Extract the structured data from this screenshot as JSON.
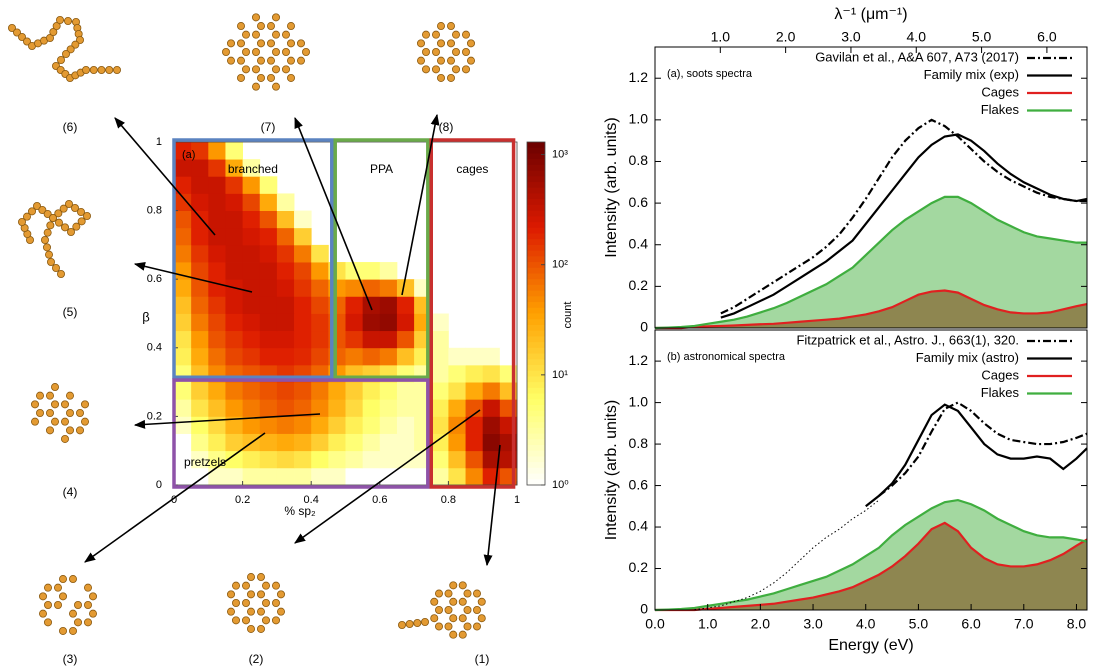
{
  "structures": {
    "labels": [
      "(1)",
      "(2)",
      "(3)",
      "(4)",
      "(5)",
      "(6)",
      "(7)",
      "(8)"
    ]
  },
  "chart_data": [
    {
      "type": "heatmap",
      "panel_label": "(a)",
      "xlabel": "% sp₂",
      "ylabel": "β",
      "colorbar_label": "count",
      "xlim": [
        0,
        1
      ],
      "ylim": [
        0,
        1
      ],
      "xticks": [
        0,
        0.2,
        0.4,
        0.6,
        0.8,
        1
      ],
      "yticks": [
        0,
        0.2,
        0.4,
        0.6,
        0.8,
        1
      ],
      "clim": [
        1,
        1300
      ],
      "log_color": true,
      "cticks": [
        {
          "value": 1,
          "label": "10⁰"
        },
        {
          "value": 10,
          "label": "10¹"
        },
        {
          "value": 100,
          "label": "10²"
        },
        {
          "value": 1000,
          "label": "10³"
        }
      ],
      "colormap": [
        "#ffffff",
        "#ffff66",
        "#ffa000",
        "#dd1a00",
        "#6b0000"
      ],
      "xbins": [
        0,
        0.05,
        0.1,
        0.15,
        0.2,
        0.25,
        0.3,
        0.35,
        0.4,
        0.45,
        0.5,
        0.55,
        0.6,
        0.65,
        0.7,
        0.75,
        0.8,
        0.85,
        0.9,
        0.95,
        1
      ],
      "ybins": [
        0,
        0.05,
        0.1,
        0.15,
        0.2,
        0.25,
        0.3,
        0.35,
        0.4,
        0.45,
        0.5,
        0.55,
        0.6,
        0.65,
        0.7,
        0.75,
        0.8,
        0.85,
        0.9,
        0.95,
        1
      ],
      "z": [
        [
          null,
          1,
          2,
          2,
          3,
          3,
          3,
          3,
          2,
          2,
          1,
          1,
          1,
          1,
          1,
          3,
          10,
          50,
          200,
          100
        ],
        [
          1,
          2,
          4,
          6,
          8,
          10,
          12,
          10,
          6,
          4,
          3,
          2,
          2,
          2,
          2,
          5,
          20,
          100,
          500,
          400
        ],
        [
          1,
          4,
          8,
          15,
          20,
          25,
          30,
          25,
          15,
          8,
          5,
          3,
          2,
          2,
          3,
          8,
          40,
          200,
          800,
          500
        ],
        [
          2,
          6,
          12,
          25,
          40,
          50,
          60,
          50,
          30,
          15,
          8,
          5,
          3,
          2,
          3,
          10,
          50,
          200,
          600,
          300
        ],
        [
          3,
          10,
          20,
          40,
          60,
          80,
          100,
          80,
          50,
          25,
          12,
          6,
          4,
          3,
          3,
          8,
          30,
          100,
          300,
          100
        ],
        [
          5,
          15,
          30,
          60,
          80,
          100,
          120,
          100,
          60,
          30,
          15,
          8,
          5,
          3,
          3,
          5,
          10,
          30,
          60,
          20
        ],
        [
          5,
          20,
          50,
          80,
          100,
          120,
          150,
          120,
          80,
          40,
          20,
          15,
          10,
          5,
          3,
          3,
          5,
          8,
          10,
          5
        ],
        [
          8,
          30,
          70,
          120,
          150,
          200,
          200,
          180,
          120,
          80,
          60,
          80,
          60,
          20,
          8,
          3,
          2,
          2,
          2,
          1
        ],
        [
          10,
          40,
          100,
          150,
          200,
          250,
          250,
          200,
          150,
          100,
          150,
          300,
          300,
          100,
          15,
          3,
          null,
          null,
          null,
          null
        ],
        [
          15,
          60,
          120,
          200,
          250,
          300,
          300,
          200,
          150,
          100,
          250,
          600,
          700,
          250,
          30,
          2,
          null,
          null,
          null,
          null
        ],
        [
          20,
          80,
          150,
          250,
          300,
          300,
          300,
          200,
          120,
          80,
          200,
          500,
          600,
          200,
          20,
          null,
          null,
          null,
          null,
          null
        ],
        [
          30,
          100,
          200,
          250,
          300,
          300,
          250,
          150,
          80,
          40,
          50,
          80,
          60,
          20,
          2,
          null,
          null,
          null,
          null,
          null
        ],
        [
          40,
          120,
          200,
          300,
          300,
          300,
          200,
          120,
          40,
          10,
          5,
          5,
          3,
          null,
          null,
          null,
          null,
          null,
          null,
          null
        ],
        [
          60,
          150,
          250,
          300,
          300,
          250,
          150,
          60,
          10,
          null,
          null,
          null,
          null,
          null,
          null,
          null,
          null,
          null,
          null,
          null
        ],
        [
          80,
          200,
          300,
          300,
          250,
          200,
          80,
          15,
          null,
          null,
          null,
          null,
          null,
          null,
          null,
          null,
          null,
          null,
          null,
          null
        ],
        [
          100,
          200,
          300,
          300,
          200,
          100,
          20,
          2,
          null,
          null,
          null,
          null,
          null,
          null,
          null,
          null,
          null,
          null,
          null,
          null
        ],
        [
          150,
          250,
          300,
          250,
          120,
          30,
          3,
          null,
          null,
          null,
          null,
          null,
          null,
          null,
          null,
          null,
          null,
          null,
          null,
          null
        ],
        [
          200,
          300,
          300,
          150,
          40,
          5,
          null,
          null,
          null,
          null,
          null,
          null,
          null,
          null,
          null,
          null,
          null,
          null,
          null,
          null
        ],
        [
          300,
          300,
          150,
          30,
          3,
          null,
          null,
          null,
          null,
          null,
          null,
          null,
          null,
          null,
          null,
          null,
          null,
          null,
          null,
          null
        ],
        [
          200,
          150,
          40,
          5,
          null,
          null,
          null,
          null,
          null,
          null,
          null,
          null,
          null,
          null,
          null,
          null,
          null,
          null,
          null,
          null
        ]
      ],
      "regions": [
        {
          "name": "branched",
          "color": "#5b83c0",
          "x": [
            0,
            0.46
          ],
          "y": [
            0.32,
            1
          ],
          "label_corner": "top"
        },
        {
          "name": "PPA",
          "color": "#6aaa4a",
          "x": [
            0.47,
            0.74
          ],
          "y": [
            0.32,
            1
          ],
          "label_corner": "top"
        },
        {
          "name": "cages",
          "color": "#c8302f",
          "x": [
            0.75,
            0.99
          ],
          "y": [
            0,
            1
          ],
          "label_corner": "top"
        },
        {
          "name": "pretzels",
          "color": "#8e52a8",
          "x": [
            0,
            0.74
          ],
          "y": [
            0,
            0.3
          ],
          "label_corner": "bottom-left"
        }
      ]
    },
    {
      "type": "line",
      "panel_label": "(a), soots spectra",
      "ylabel": "Intensity (arb. units)",
      "x2label": "λ⁻¹ (μm⁻¹)",
      "x2lim": [
        0,
        6.614
      ],
      "x2ticks": [
        {
          "value": 1,
          "label": "1.0"
        },
        {
          "value": 2,
          "label": "2.0"
        },
        {
          "value": 3,
          "label": "3.0"
        },
        {
          "value": 4,
          "label": "4.0"
        },
        {
          "value": 5,
          "label": "5.0"
        },
        {
          "value": 6,
          "label": "6.0"
        }
      ],
      "xlim": [
        0,
        8.2
      ],
      "ylim": [
        0,
        1.35
      ],
      "yticks": [
        0,
        0.2,
        0.4,
        0.6,
        0.8,
        {
          "value": 1,
          "label": "1.0"
        },
        1.2
      ],
      "legend": "top-right",
      "x": [
        0,
        0.25,
        0.5,
        0.75,
        1,
        1.25,
        1.5,
        1.75,
        2,
        2.25,
        2.5,
        2.75,
        3,
        3.25,
        3.5,
        3.75,
        4,
        4.25,
        4.5,
        4.75,
        5,
        5.25,
        5.5,
        5.75,
        6,
        6.25,
        6.5,
        6.75,
        7,
        7.25,
        7.5,
        7.75,
        8,
        8.2
      ],
      "series": [
        {
          "name": "Gavilan et al., A&A 607, A73 (2017)",
          "color": "#000000",
          "line_style": "dash-dot",
          "values": [
            null,
            null,
            null,
            null,
            null,
            0.07,
            0.1,
            0.14,
            0.18,
            0.22,
            0.26,
            0.3,
            0.34,
            0.39,
            0.45,
            0.53,
            0.62,
            0.72,
            0.82,
            0.9,
            0.96,
            1.0,
            0.97,
            0.92,
            0.86,
            0.8,
            0.75,
            0.71,
            0.68,
            0.65,
            0.63,
            0.62,
            0.61,
            0.61
          ]
        },
        {
          "name": "Family mix (exp)",
          "color": "#000000",
          "line_style": "solid",
          "values": [
            null,
            null,
            null,
            null,
            null,
            0.05,
            0.07,
            0.1,
            0.13,
            0.16,
            0.2,
            0.24,
            0.28,
            0.32,
            0.37,
            0.42,
            0.5,
            0.58,
            0.66,
            0.74,
            0.82,
            0.88,
            0.92,
            0.93,
            0.9,
            0.85,
            0.79,
            0.74,
            0.7,
            0.67,
            0.64,
            0.62,
            0.61,
            0.62
          ]
        },
        {
          "name": "Cages",
          "color": "#e02020",
          "line_style": "solid",
          "fill_color": "#8e8650",
          "values": [
            0,
            0,
            0,
            0.005,
            0.008,
            0.01,
            0.012,
            0.015,
            0.018,
            0.02,
            0.025,
            0.03,
            0.035,
            0.04,
            0.045,
            0.055,
            0.065,
            0.08,
            0.1,
            0.13,
            0.16,
            0.175,
            0.18,
            0.17,
            0.14,
            0.11,
            0.09,
            0.075,
            0.07,
            0.07,
            0.075,
            0.09,
            0.105,
            0.115
          ]
        },
        {
          "name": "Flakes",
          "color": "#3fae3f",
          "line_style": "solid",
          "fill_color": "#a3d8a0",
          "values": [
            0,
            0.002,
            0.005,
            0.01,
            0.02,
            0.03,
            0.04,
            0.055,
            0.075,
            0.095,
            0.12,
            0.15,
            0.18,
            0.21,
            0.25,
            0.29,
            0.35,
            0.41,
            0.47,
            0.52,
            0.56,
            0.6,
            0.63,
            0.63,
            0.6,
            0.56,
            0.52,
            0.49,
            0.46,
            0.44,
            0.43,
            0.42,
            0.41,
            0.41
          ]
        }
      ]
    },
    {
      "type": "line",
      "panel_label": "(b) astronomical spectra",
      "ylabel": "Intensity (arb. units)",
      "xlabel": "Energy (eV)",
      "xlim": [
        0,
        8.2
      ],
      "ylim": [
        0,
        1.35
      ],
      "xticks": [
        {
          "value": 0,
          "label": "0.0"
        },
        {
          "value": 1,
          "label": "1.0"
        },
        {
          "value": 2,
          "label": "2.0"
        },
        {
          "value": 3,
          "label": "3.0"
        },
        {
          "value": 4,
          "label": "4.0"
        },
        {
          "value": 5,
          "label": "5.0"
        },
        {
          "value": 6,
          "label": "6.0"
        },
        {
          "value": 7,
          "label": "7.0"
        },
        {
          "value": 8,
          "label": "8.0"
        }
      ],
      "yticks": [
        0,
        0.2,
        0.4,
        0.6,
        0.8,
        {
          "value": 1,
          "label": "1.0"
        },
        1.2
      ],
      "legend": "top-right",
      "x": [
        0,
        0.25,
        0.5,
        0.75,
        1,
        1.25,
        1.5,
        1.75,
        2,
        2.25,
        2.5,
        2.75,
        3,
        3.25,
        3.5,
        3.75,
        4,
        4.25,
        4.5,
        4.75,
        5,
        5.25,
        5.5,
        5.75,
        6,
        6.25,
        6.5,
        6.75,
        7,
        7.25,
        7.5,
        7.75,
        8,
        8.2
      ],
      "series": [
        {
          "name": "Fitzpatrick et al., Astro. J., 663(1), 320.",
          "color": "#000000",
          "line_style": "dash-dot",
          "values": [
            null,
            null,
            null,
            null,
            null,
            null,
            null,
            null,
            null,
            null,
            null,
            null,
            null,
            null,
            null,
            null,
            null,
            0.55,
            0.6,
            0.66,
            0.74,
            0.86,
            0.97,
            1.0,
            0.96,
            0.9,
            0.85,
            0.82,
            0.81,
            0.8,
            0.8,
            0.81,
            0.83,
            0.85
          ]
        },
        {
          "name": "Family mix (astro)",
          "color": "#000000",
          "line_style": "solid",
          "values": [
            null,
            null,
            null,
            null,
            null,
            null,
            null,
            null,
            null,
            null,
            null,
            null,
            null,
            null,
            null,
            null,
            0.5,
            0.55,
            0.61,
            0.7,
            0.82,
            0.94,
            0.99,
            0.96,
            0.88,
            0.8,
            0.75,
            0.73,
            0.73,
            0.74,
            0.73,
            0.68,
            0.73,
            0.78
          ]
        },
        {
          "name": "Cages",
          "color": "#e02020",
          "line_style": "solid",
          "fill_color": "#8e8650",
          "values": [
            0,
            0,
            0,
            0,
            0.005,
            0.01,
            0.015,
            0.02,
            0.025,
            0.03,
            0.04,
            0.05,
            0.06,
            0.075,
            0.09,
            0.11,
            0.14,
            0.17,
            0.21,
            0.26,
            0.32,
            0.39,
            0.42,
            0.38,
            0.3,
            0.25,
            0.22,
            0.21,
            0.21,
            0.22,
            0.24,
            0.27,
            0.31,
            0.34
          ]
        },
        {
          "name": "Flakes",
          "color": "#3fae3f",
          "line_style": "solid",
          "fill_color": "#a3d8a0",
          "values": [
            0,
            0.002,
            0.005,
            0.01,
            0.02,
            0.03,
            0.04,
            0.05,
            0.065,
            0.08,
            0.1,
            0.12,
            0.14,
            0.16,
            0.19,
            0.22,
            0.26,
            0.3,
            0.36,
            0.41,
            0.45,
            0.49,
            0.52,
            0.53,
            0.51,
            0.48,
            0.44,
            0.41,
            0.38,
            0.36,
            0.35,
            0.35,
            0.34,
            0.33
          ]
        },
        {
          "color": "#000000",
          "line_style": "dotted",
          "values": [
            null,
            null,
            null,
            0.002,
            0.01,
            0.02,
            0.04,
            0.06,
            0.09,
            0.13,
            0.18,
            0.24,
            0.3,
            0.35,
            0.39,
            0.44,
            0.48,
            0.53,
            null,
            null,
            null,
            null,
            null,
            null,
            null,
            null,
            null,
            null,
            null,
            null,
            null,
            null,
            null,
            null
          ]
        }
      ]
    }
  ]
}
